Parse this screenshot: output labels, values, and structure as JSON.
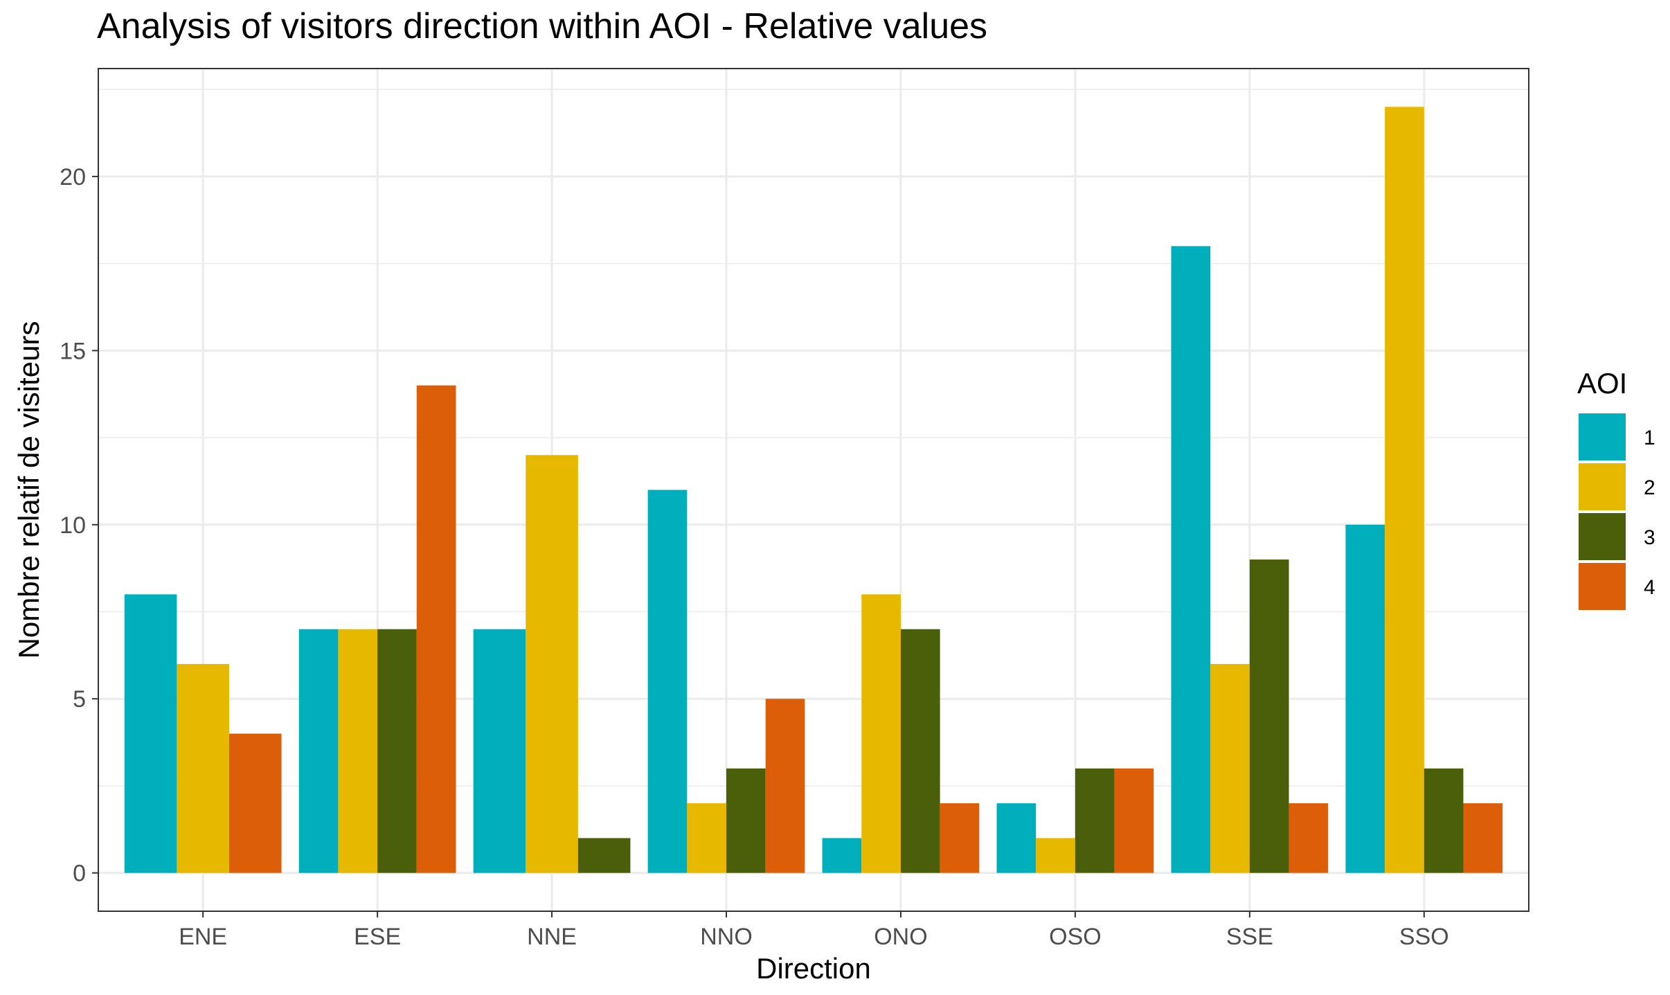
{
  "chart_data": {
    "type": "bar",
    "title": "Analysis of visitors direction within AOI - Relative values",
    "xlabel": "Direction",
    "ylabel": "Nombre relatif de visiteurs",
    "categories": [
      "ENE",
      "ESE",
      "NNE",
      "NNO",
      "ONO",
      "OSO",
      "SSE",
      "SSO"
    ],
    "series": [
      {
        "name": "1",
        "color": "#00AFBB",
        "values": [
          8,
          7,
          7,
          11,
          1,
          2,
          18,
          10
        ]
      },
      {
        "name": "2",
        "color": "#E7B800",
        "values": [
          6,
          7,
          12,
          2,
          8,
          1,
          6,
          22
        ]
      },
      {
        "name": "3",
        "color": "#4B5E0A",
        "values": [
          null,
          7,
          1,
          3,
          7,
          3,
          9,
          3
        ]
      },
      {
        "name": "4",
        "color": "#DD5E08",
        "values": [
          4,
          14,
          null,
          5,
          2,
          3,
          2,
          2
        ]
      }
    ],
    "ylim": [
      -1.1,
      23.1
    ],
    "yticks": [
      0,
      5,
      10,
      15,
      20
    ],
    "legend": {
      "title": "AOI",
      "position": "right"
    },
    "grid": true,
    "theme": "bw"
  }
}
